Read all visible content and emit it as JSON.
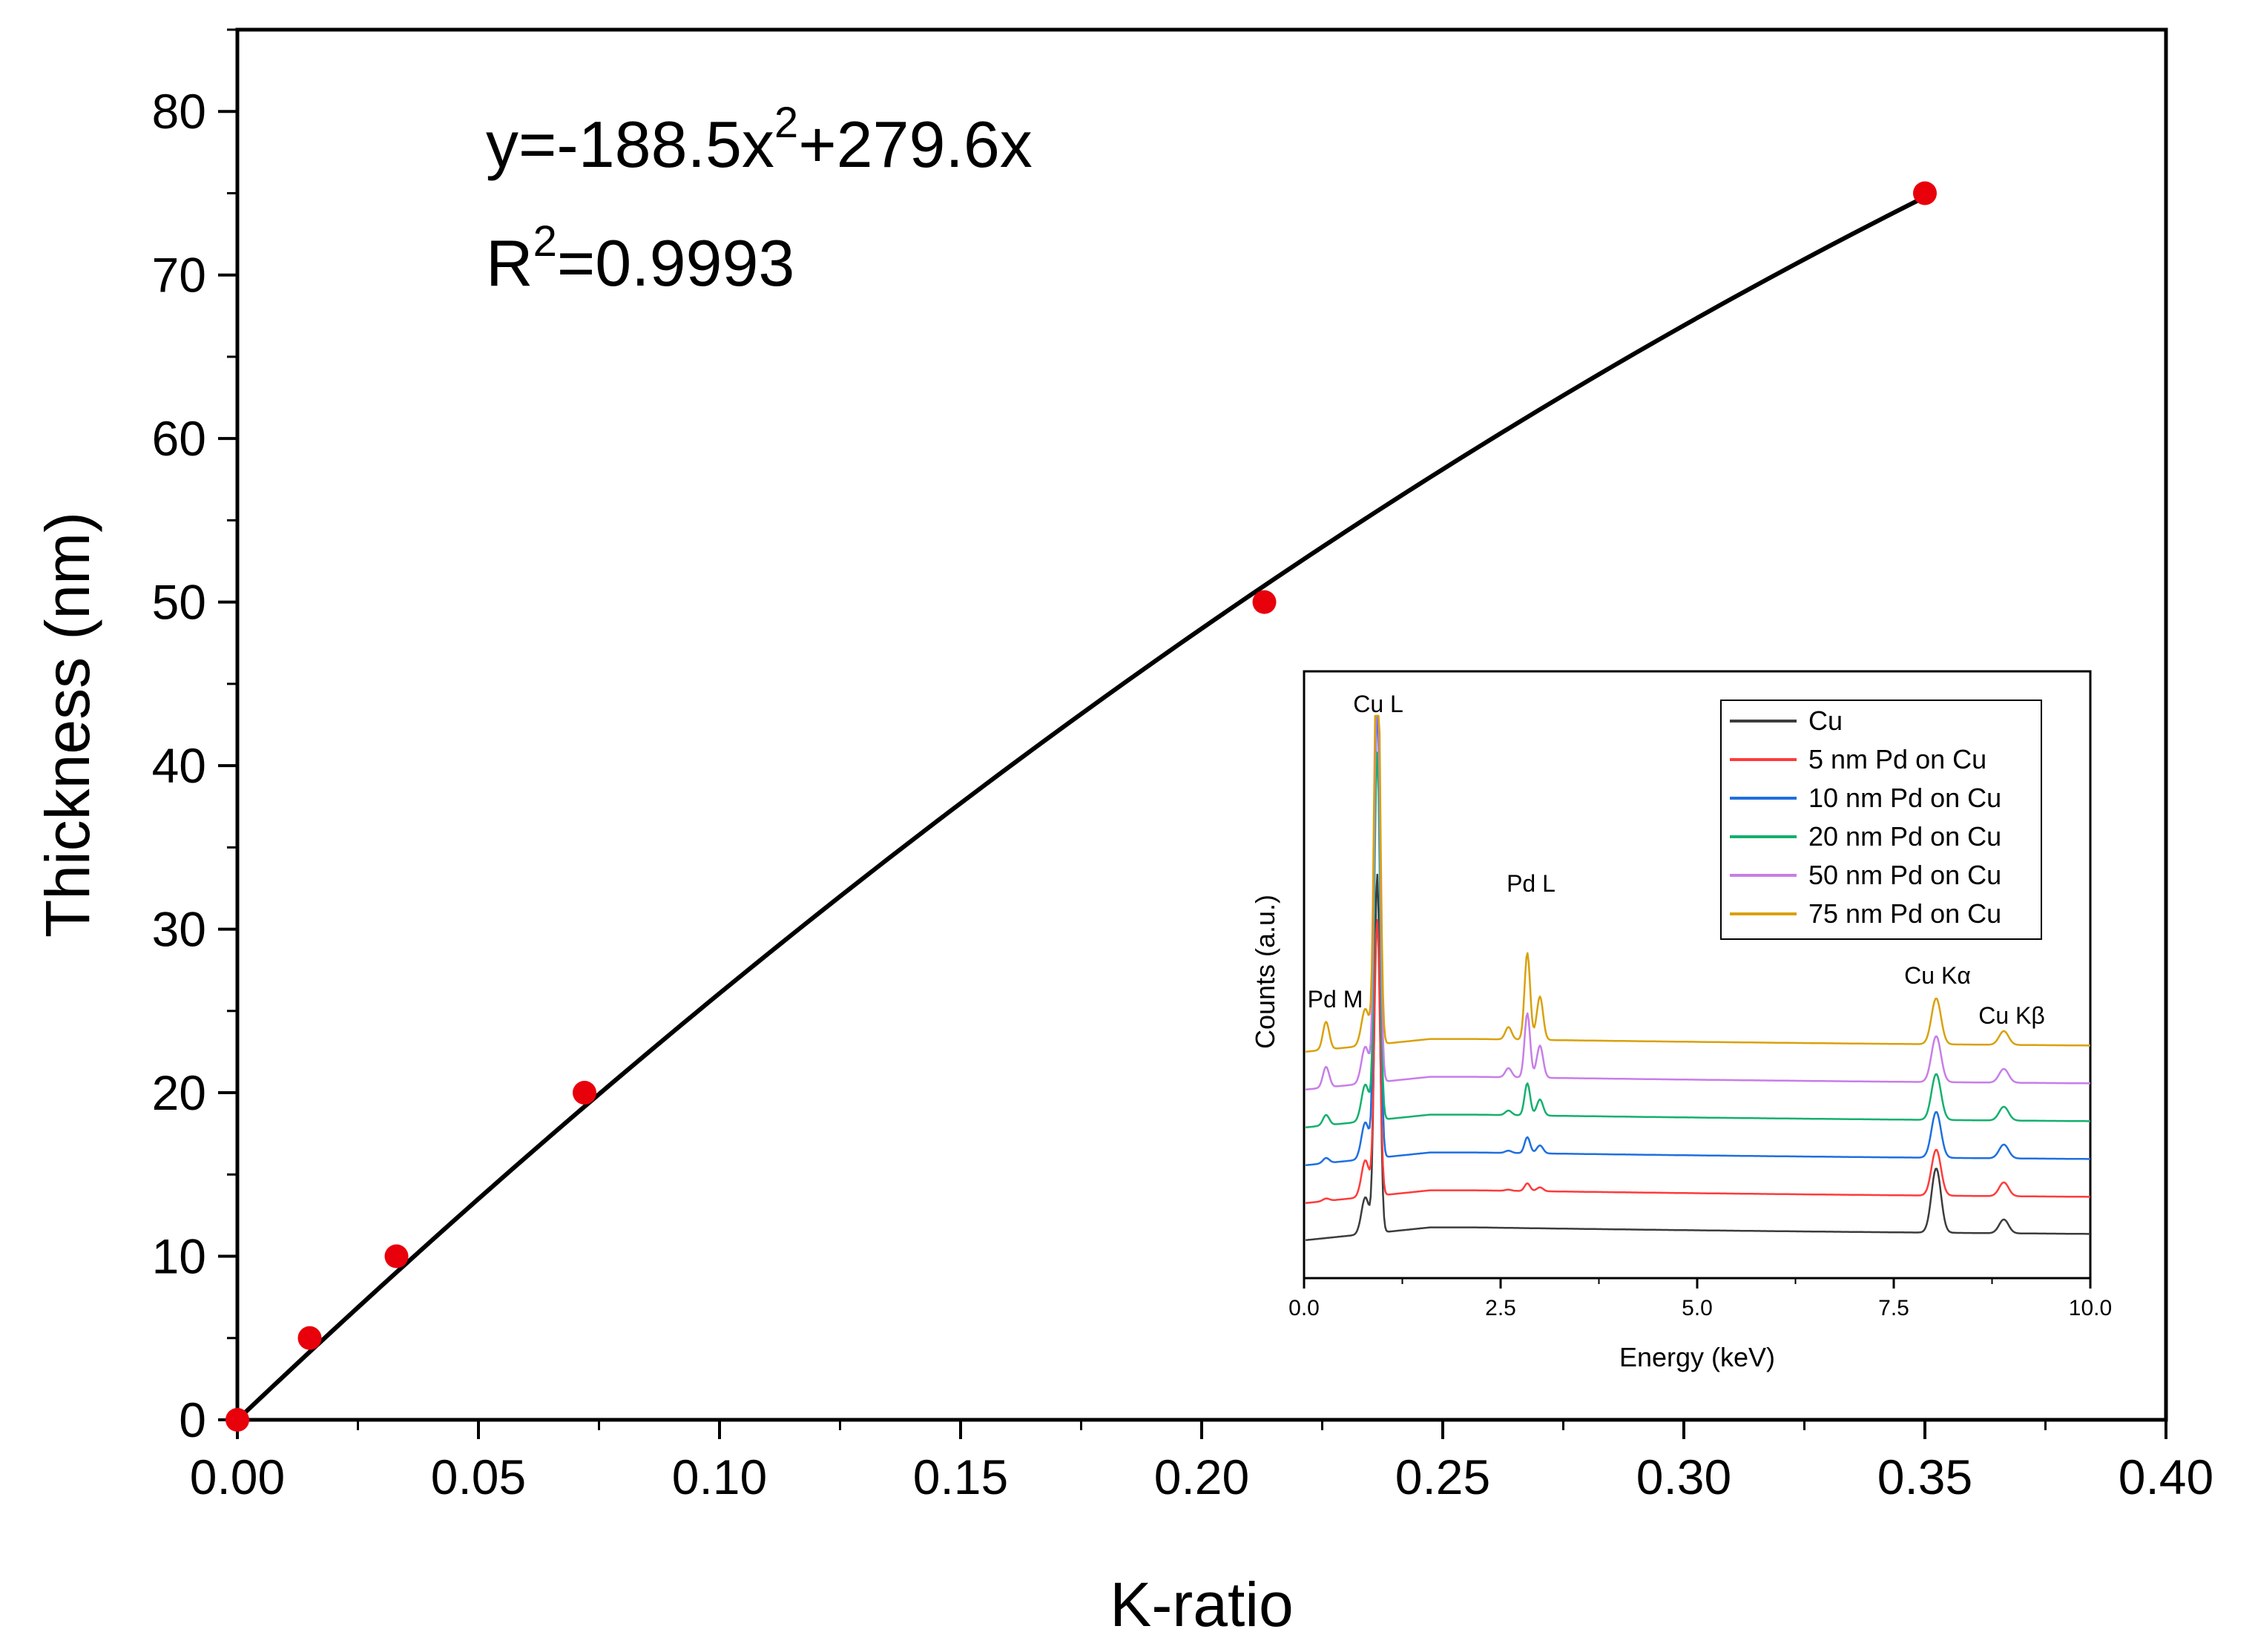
{
  "chart_data": [
    {
      "type": "scatter",
      "title": "",
      "xlabel": "K-ratio",
      "ylabel": "Thickness (nm)",
      "xlim": [
        0,
        0.4
      ],
      "ylim": [
        0,
        85
      ],
      "xticks": [
        "0.00",
        "0.05",
        "0.10",
        "0.15",
        "0.20",
        "0.25",
        "0.30",
        "0.35",
        "0.40"
      ],
      "yticks": [
        "0",
        "10",
        "20",
        "30",
        "40",
        "50",
        "60",
        "70",
        "80"
      ],
      "points": {
        "x": [
          0.0,
          0.015,
          0.033,
          0.072,
          0.213,
          0.35
        ],
        "y": [
          0,
          5,
          10,
          20,
          50,
          75
        ],
        "color": "#e8000b"
      },
      "fit": {
        "a": -188.5,
        "b": 279.6,
        "x_range": [
          0,
          0.35
        ],
        "color": "#000000",
        "equation_prefix": "y=-188.5x",
        "equation_exp": "2",
        "equation_suffix": "+279.6x",
        "r2_prefix": "R",
        "r2_exp": "2",
        "r2_suffix": "=0.9993"
      }
    },
    {
      "type": "line",
      "title": "",
      "xlabel": "Energy (keV)",
      "ylabel": "Counts (a.u.)",
      "xlim": [
        0,
        10
      ],
      "xticks": [
        "0.0",
        "2.5",
        "5.0",
        "7.5",
        "10.0"
      ],
      "peak_labels": [
        "Cu L",
        "Pd L",
        "Pd M",
        "Cu Kα",
        "Cu Kβ"
      ],
      "series": [
        {
          "name": "Cu",
          "color": "#3c3c3c",
          "pd_scale": 0
        },
        {
          "name": "5 nm Pd on Cu",
          "color": "#ff3b3b",
          "pd_scale": 0.12
        },
        {
          "name": "10 nm Pd on Cu",
          "color": "#1f6fe0",
          "pd_scale": 0.25
        },
        {
          "name": "20 nm Pd on Cu",
          "color": "#14b06e",
          "pd_scale": 0.5
        },
        {
          "name": "50 nm Pd on Cu",
          "color": "#c77ee8",
          "pd_scale": 1.0
        },
        {
          "name": "75 nm Pd on Cu",
          "color": "#d9a10c",
          "pd_scale": 1.35
        }
      ]
    }
  ]
}
